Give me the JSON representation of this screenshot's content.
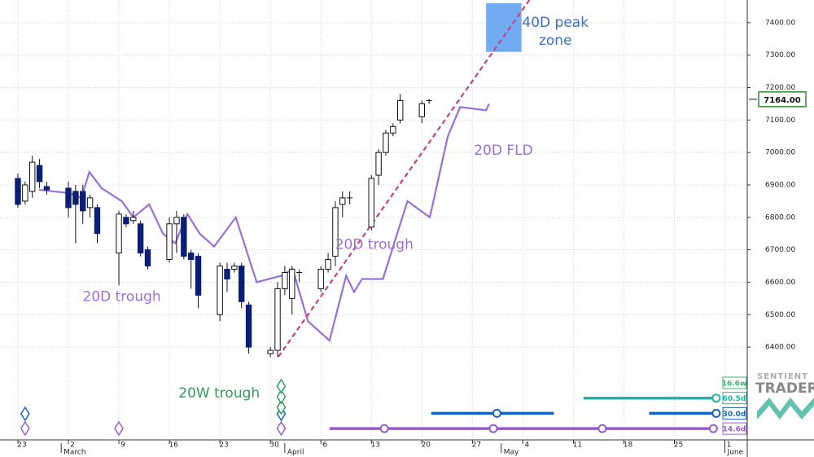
{
  "chart_data": {
    "type": "candlestick",
    "x": [
      0,
      1,
      2,
      3,
      4,
      7,
      8,
      9,
      10,
      11,
      14,
      15,
      16,
      17,
      18,
      21,
      22,
      23,
      24,
      25,
      28,
      29,
      30,
      31,
      32,
      35,
      36,
      37,
      38,
      39,
      42,
      43,
      44,
      45,
      46,
      49,
      50,
      51,
      52,
      53,
      56,
      57
    ],
    "open": [
      6920,
      6850,
      6880,
      6960,
      6895,
      6890,
      6880,
      6880,
      6830,
      6830,
      6690,
      6800,
      6790,
      6780,
      6700,
      6670,
      6780,
      6800,
      6690,
      6680,
      6500,
      6640,
      6640,
      6650,
      6530,
      6380,
      6390,
      6580,
      6550,
      6630,
      6580,
      6640,
      6680,
      6840,
      6860,
      6770,
      6930,
      7000,
      7060,
      7100,
      7110,
      7160
    ],
    "high": [
      6935,
      6910,
      6990,
      6980,
      6910,
      6910,
      6900,
      6900,
      6870,
      6840,
      6820,
      6810,
      6820,
      6790,
      6710,
      6800,
      6820,
      6810,
      6700,
      6690,
      6660,
      6660,
      6660,
      6660,
      6540,
      6400,
      6600,
      6650,
      6650,
      6640,
      6650,
      6690,
      6850,
      6880,
      6880,
      6930,
      7010,
      7070,
      7090,
      7180,
      7160,
      7165
    ],
    "low": [
      6830,
      6840,
      6860,
      6890,
      6870,
      6800,
      6720,
      6780,
      6800,
      6720,
      6590,
      6770,
      6780,
      6680,
      6640,
      6660,
      6690,
      6670,
      6580,
      6520,
      6480,
      6570,
      6630,
      6520,
      6380,
      6370,
      6370,
      6560,
      6500,
      6600,
      6570,
      6630,
      6650,
      6800,
      6840,
      6760,
      6900,
      6990,
      7050,
      7090,
      7090,
      7150
    ],
    "close": [
      6840,
      6900,
      6970,
      6910,
      6885,
      6830,
      6840,
      6820,
      6860,
      6750,
      6810,
      6780,
      6800,
      6690,
      6650,
      6780,
      6800,
      6680,
      6670,
      6560,
      6650,
      6610,
      6650,
      6540,
      6400,
      6390,
      6580,
      6630,
      6640,
      6630,
      6640,
      6670,
      6830,
      6860,
      6860,
      6920,
      7000,
      7060,
      7080,
      7160,
      7150,
      7160
    ],
    "up_color": "#ffffff",
    "down_color": "#0b1f73",
    "fld": {
      "color": "#9a6fdc",
      "x": [
        2.9,
        4.9,
        7.1,
        8.8,
        9.9,
        11.6,
        14.4,
        16.0,
        18.2,
        20.1,
        21.8,
        23.5,
        25.2,
        27.2,
        30.2,
        33.1,
        36.5,
        38.1,
        40.2,
        43.2,
        45.5,
        46.6,
        47.7,
        50.6,
        54.0,
        57.1,
        59.6,
        61.3,
        64.9,
        65.3
      ],
      "values": [
        6885,
        6880,
        6875,
        6860,
        6940,
        6890,
        6850,
        6800,
        6840,
        6750,
        6720,
        6810,
        6750,
        6710,
        6800,
        6600,
        6620,
        6640,
        6480,
        6420,
        6620,
        6570,
        6610,
        6610,
        6850,
        6800,
        7050,
        7140,
        7130,
        7150
      ]
    },
    "trend": {
      "color": "#c8407e",
      "x": [
        36.1,
        70.9
      ],
      "values": [
        6370,
        7470
      ]
    },
    "peak_zone": {
      "color": "#5b9cf0",
      "x": [
        64.9,
        69.8
      ],
      "values": [
        7310,
        7460
      ]
    },
    "annotations": [
      {
        "text": "20D trough",
        "x": 14.4,
        "y": 6555,
        "color": "#9a6fdc"
      },
      {
        "text": "20D trough",
        "x": 49.4,
        "y": 6715,
        "color": "#9a6fdc"
      },
      {
        "text": "20D FLD",
        "x": 67.3,
        "y": 7005,
        "color": "#9a6fdc"
      },
      {
        "text": "20W trough",
        "x": 27.9,
        "y": 6257,
        "color": "#2e9e5b"
      },
      {
        "text": [
          "40D peak",
          "zone"
        ],
        "x": 74.5,
        "y": 7400,
        "color": "#3a6fc8"
      }
    ],
    "last_price": {
      "value": 7164,
      "label": "7164.00",
      "color": "#2e8b2e"
    },
    "cycles": [
      {
        "label": "16.6w",
        "color": "#3cb371"
      },
      {
        "label": "60.5d",
        "color": "#20b2aa",
        "segments": [
          [
            78.4,
            96.8
          ]
        ],
        "points": [
          96.8
        ]
      },
      {
        "label": "30.0d",
        "color": "#1565c0",
        "segments": [
          [
            57.3,
            74.3
          ],
          [
            87.5,
            96.8
          ]
        ],
        "points": [
          66.4,
          96.8
        ]
      },
      {
        "label": "14.6d",
        "color": "#9b59d0",
        "segments": [
          [
            43.2,
            96.8
          ]
        ],
        "points": [
          50.8,
          65.9,
          81.0,
          96.4
        ]
      }
    ],
    "diamonds": [
      {
        "x": 1,
        "color": "#9b59d0"
      },
      {
        "x": 1,
        "color": "#1565c0"
      },
      {
        "x": 14,
        "color": "#9b59d0"
      },
      {
        "x": 36.5,
        "color": "#9b59d0"
      },
      {
        "x": 36.5,
        "color": "#1565c0"
      },
      {
        "x": 36.5,
        "color": "#2e9e5b"
      },
      {
        "x": 36.5,
        "color": "#2e9e5b"
      },
      {
        "x": 36.5,
        "color": "#2e9e5b"
      }
    ],
    "watermark": [
      "SENTIENT",
      "TRADER"
    ],
    "xlim": [
      -2.48,
      101.1
    ],
    "ylim": [
      6114,
      7470
    ],
    "yticks": [
      {
        "value": 6400,
        "label": "6400.00"
      },
      {
        "value": 6500,
        "label": "6500.00"
      },
      {
        "value": 6600,
        "label": "6600.00"
      },
      {
        "value": 6700,
        "label": "6700.00"
      },
      {
        "value": 6800,
        "label": "6800.00"
      },
      {
        "value": 6900,
        "label": "6900.00"
      },
      {
        "value": 7000,
        "label": "7000.00"
      },
      {
        "value": 7100,
        "label": "7100.00"
      },
      {
        "value": 7200,
        "label": "7200.00"
      },
      {
        "value": 7300,
        "label": "7300.00"
      },
      {
        "value": 7400,
        "label": "7400.00"
      }
    ],
    "xticks": [
      {
        "value": 0,
        "label": "23"
      },
      {
        "value": 7,
        "label": "2"
      },
      {
        "value": 14,
        "label": "9"
      },
      {
        "value": 21,
        "label": "16"
      },
      {
        "value": 28,
        "label": "23"
      },
      {
        "value": 35,
        "label": "30"
      },
      {
        "value": 42,
        "label": "6"
      },
      {
        "value": 49,
        "label": "13"
      },
      {
        "value": 56,
        "label": "20"
      },
      {
        "value": 63,
        "label": "27"
      },
      {
        "value": 70,
        "label": "4"
      },
      {
        "value": 77,
        "label": "11"
      },
      {
        "value": 84,
        "label": "18"
      },
      {
        "value": 91,
        "label": "25"
      },
      {
        "value": 98,
        "label": "1"
      }
    ],
    "month_ticks": [
      {
        "value": 6,
        "label": "March"
      },
      {
        "value": 37,
        "label": "April"
      },
      {
        "value": 67,
        "label": "May"
      },
      {
        "value": 98,
        "label": "June"
      }
    ],
    "grid": true
  }
}
